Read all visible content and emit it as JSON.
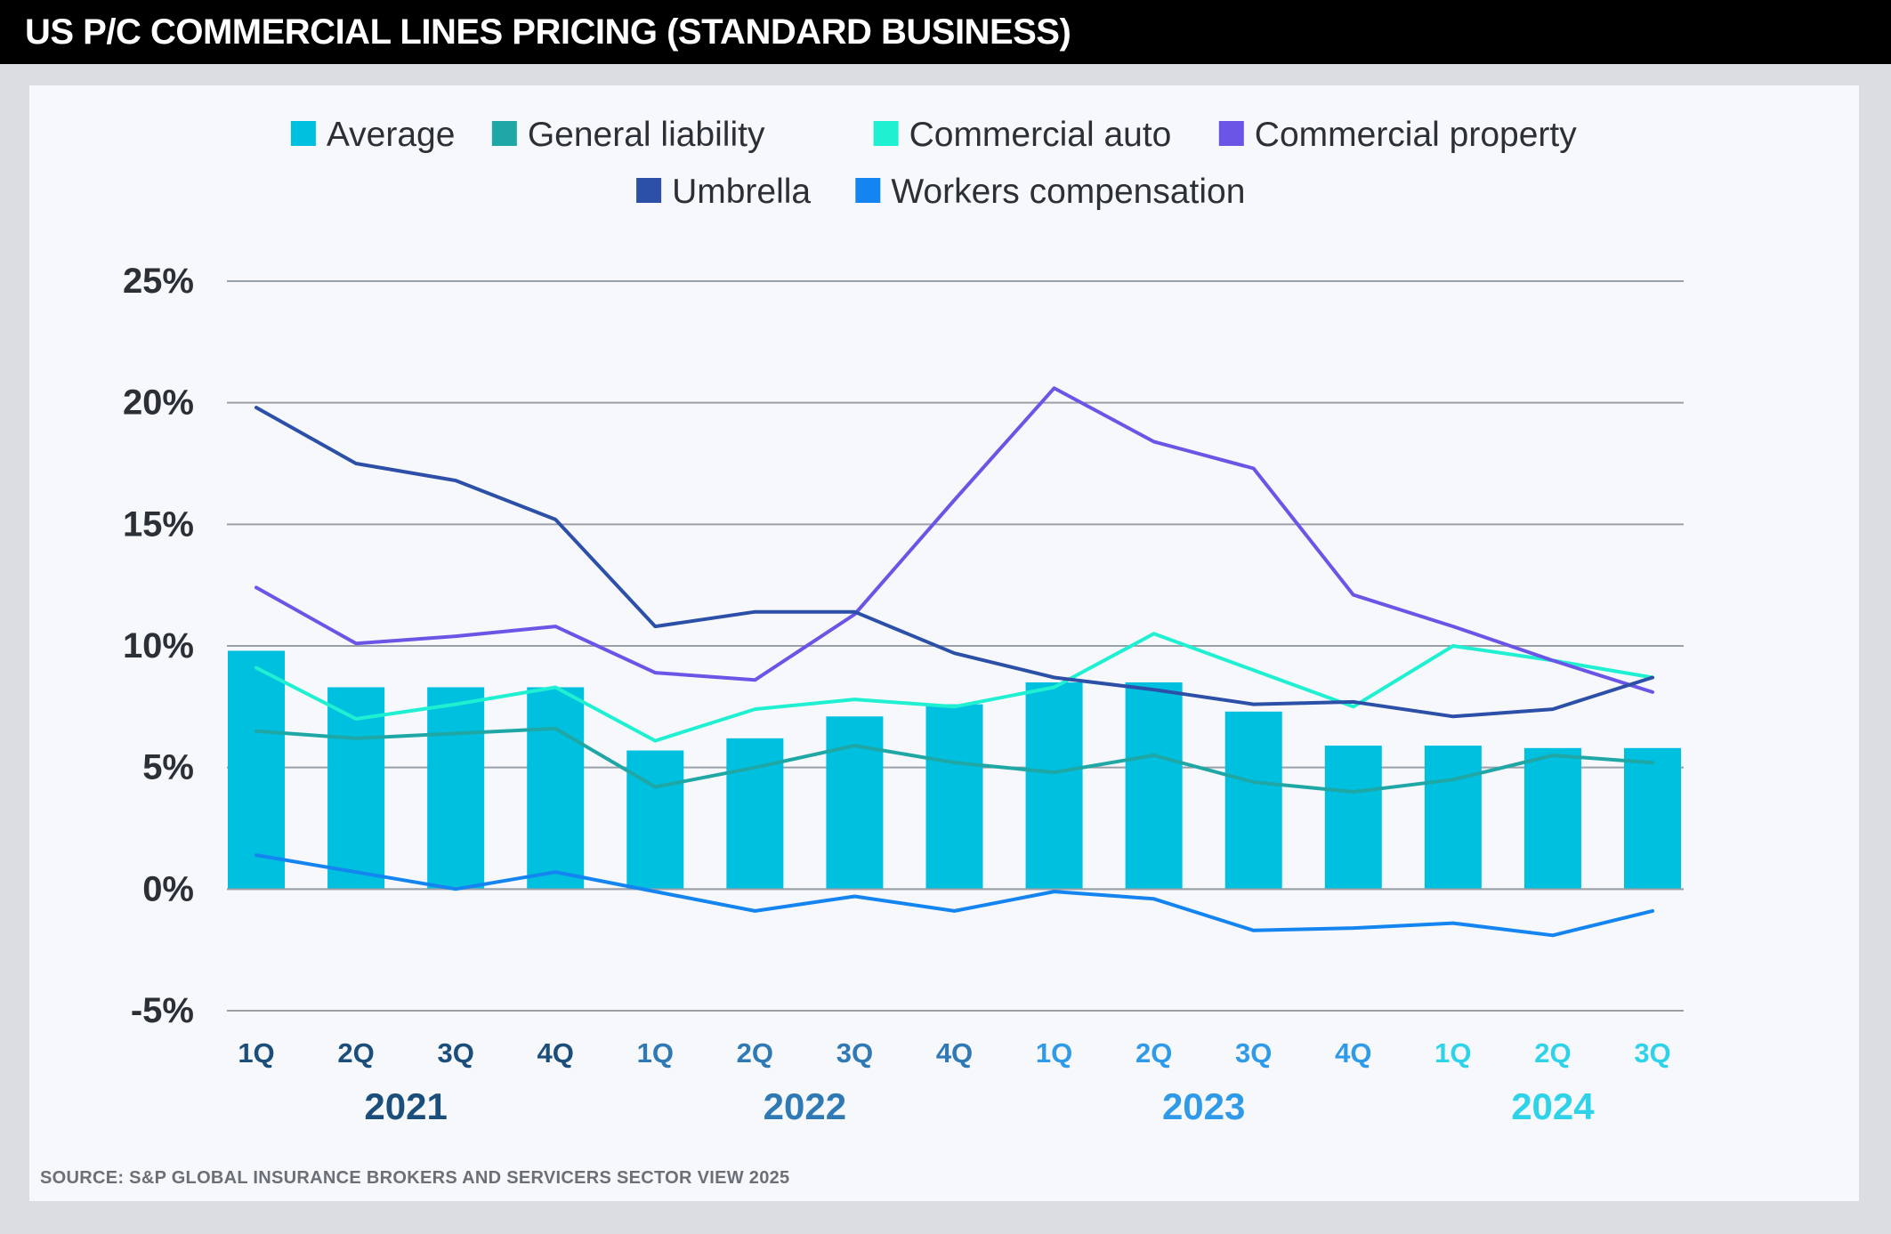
{
  "title": "US P/C COMMERCIAL LINES PRICING (STANDARD BUSINESS)",
  "source": "SOURCE: S&P GLOBAL INSURANCE BROKERS AND SERVICERS SECTOR VIEW 2025",
  "chart_data": {
    "type": "bar",
    "categories": [
      "1Q",
      "2Q",
      "3Q",
      "4Q",
      "1Q",
      "2Q",
      "3Q",
      "4Q",
      "1Q",
      "2Q",
      "3Q",
      "4Q",
      "1Q",
      "2Q",
      "3Q"
    ],
    "year_groups": [
      {
        "label": "2021",
        "start": 0,
        "end": 3,
        "color": "#1b4e7a"
      },
      {
        "label": "2022",
        "start": 4,
        "end": 7,
        "color": "#2f79b5"
      },
      {
        "label": "2023",
        "start": 8,
        "end": 11,
        "color": "#2f9be8"
      },
      {
        "label": "2024",
        "start": 12,
        "end": 14,
        "color": "#2ed3ea"
      }
    ],
    "tick_colors": [
      "#1b4e7a",
      "#1b4e7a",
      "#1b4e7a",
      "#1b4e7a",
      "#2f79b5",
      "#2f79b5",
      "#2f79b5",
      "#2f79b5",
      "#2f9be8",
      "#2f9be8",
      "#2f9be8",
      "#2f9be8",
      "#2ed3ea",
      "#2ed3ea",
      "#2ed3ea"
    ],
    "ylim": [
      -5,
      25
    ],
    "yticks": [
      -5,
      0,
      5,
      10,
      15,
      20,
      25
    ],
    "ytick_labels": [
      "-5%",
      "0%",
      "5%",
      "10%",
      "15%",
      "20%",
      "25%"
    ],
    "grid": true,
    "legend_position": "top",
    "series": [
      {
        "name": "Average",
        "kind": "bar",
        "color": "#00c0e0",
        "values": [
          9.8,
          8.3,
          8.3,
          8.3,
          5.7,
          6.2,
          7.1,
          7.6,
          8.5,
          8.5,
          7.3,
          5.9,
          5.9,
          5.8,
          5.8
        ]
      },
      {
        "name": "General liability",
        "kind": "line",
        "color": "#1fa7a5",
        "values": [
          6.5,
          6.2,
          6.4,
          6.6,
          4.2,
          5.0,
          5.9,
          5.2,
          4.8,
          5.5,
          4.4,
          4.0,
          4.5,
          5.5,
          5.2
        ]
      },
      {
        "name": "Commercial auto",
        "kind": "line",
        "color": "#1ff0d2",
        "values": [
          9.1,
          7.0,
          7.6,
          8.3,
          6.1,
          7.4,
          7.8,
          7.5,
          8.3,
          10.5,
          9.0,
          7.5,
          10.0,
          9.4,
          8.7
        ]
      },
      {
        "name": "Commercial property",
        "kind": "line",
        "color": "#6b55e6",
        "values": [
          12.4,
          10.1,
          10.4,
          10.8,
          8.9,
          8.6,
          11.3,
          16.0,
          20.6,
          18.4,
          17.3,
          12.1,
          10.8,
          9.4,
          8.1
        ]
      },
      {
        "name": "Umbrella",
        "kind": "line",
        "color": "#2c4fa8",
        "values": [
          19.8,
          17.5,
          16.8,
          15.2,
          10.8,
          11.4,
          11.4,
          9.7,
          8.7,
          8.2,
          7.6,
          7.7,
          7.1,
          7.4,
          8.7
        ]
      },
      {
        "name": "Workers compensation",
        "kind": "line",
        "color": "#1484f0",
        "values": [
          1.4,
          0.7,
          0.0,
          0.7,
          -0.1,
          -0.9,
          -0.3,
          -0.9,
          -0.1,
          -0.4,
          -1.7,
          -1.6,
          -1.4,
          -1.9,
          -0.9
        ]
      }
    ]
  }
}
